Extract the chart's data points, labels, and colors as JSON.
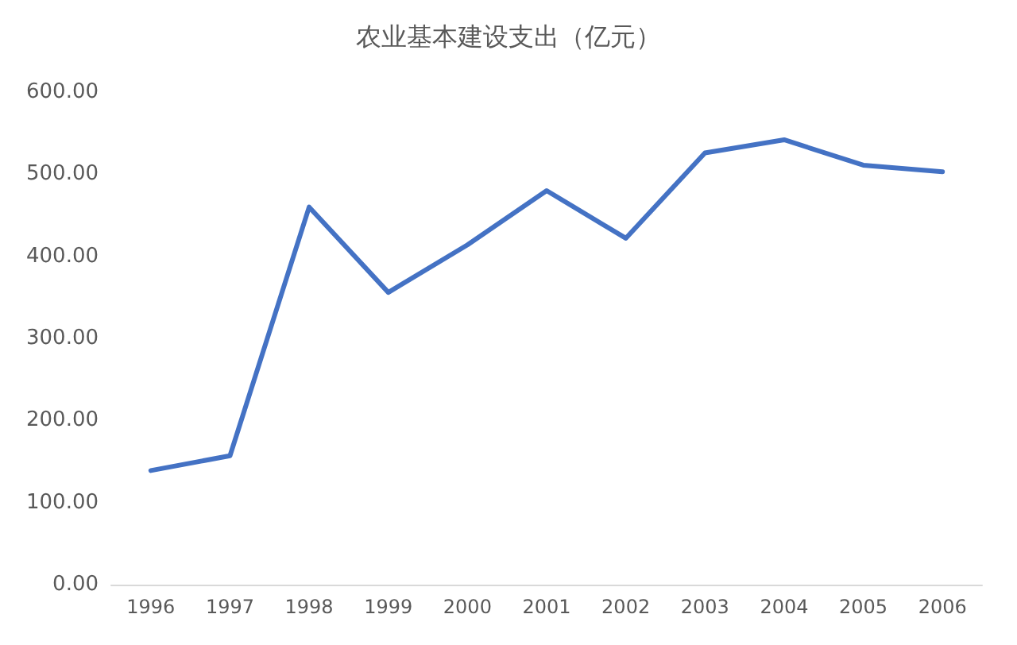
{
  "chart_data": {
    "type": "line",
    "title": "农业基本建设支出（亿元）",
    "categories": [
      "1996",
      "1997",
      "1998",
      "1999",
      "2000",
      "2001",
      "2002",
      "2003",
      "2004",
      "2005",
      "2006"
    ],
    "series": [
      {
        "color": "#4472c4",
        "values": [
          139,
          157,
          460,
          356,
          414,
          480,
          422,
          526,
          542,
          511,
          503
        ]
      }
    ],
    "ylim": [
      0,
      600
    ],
    "yticks": [
      {
        "value": 0,
        "label": "0.00"
      },
      {
        "value": 100,
        "label": "100.00"
      },
      {
        "value": 200,
        "label": "200.00"
      },
      {
        "value": 300,
        "label": "300.00"
      },
      {
        "value": 400,
        "label": "400.00"
      },
      {
        "value": 500,
        "label": "500.00"
      },
      {
        "value": 600,
        "label": "600.00"
      }
    ],
    "marker": "none",
    "line_style": "solid"
  }
}
